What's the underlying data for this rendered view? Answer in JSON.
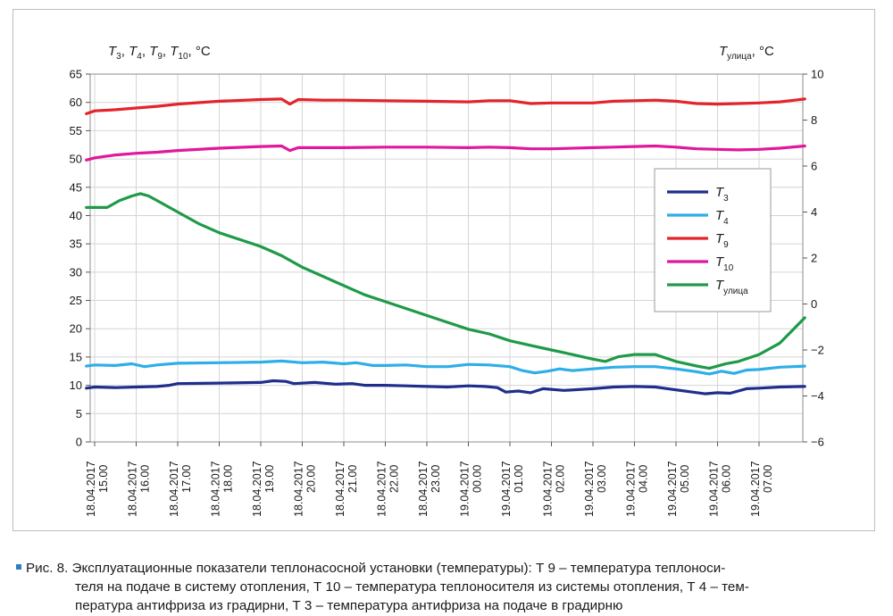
{
  "chart_data": {
    "type": "line",
    "left_axis_label": {
      "t3": "3",
      "t4": "4",
      "t9": "9",
      "t10": "10",
      "unit": ", °C"
    },
    "right_axis_label": {
      "sub": "улица",
      "unit": ", °C"
    },
    "y_left": {
      "ylim": [
        0,
        65
      ],
      "ticks": [
        "0",
        "5",
        "10",
        "15",
        "20",
        "25",
        "30",
        "35",
        "40",
        "45",
        "50",
        "55",
        "60",
        "65"
      ]
    },
    "y_right": {
      "ylim": [
        -6,
        10
      ],
      "ticks": [
        "−6",
        "−4",
        "−2",
        "0",
        "2",
        "4",
        "6",
        "8",
        "10"
      ]
    },
    "x_ticks": [
      [
        "18.04.2017",
        "15.00"
      ],
      [
        "18.04.2017",
        "16.00"
      ],
      [
        "18.04.2017",
        "17.00"
      ],
      [
        "18.04.2017",
        "18.00"
      ],
      [
        "18.04.2017",
        "19.00"
      ],
      [
        "18.04.2017",
        "20.00"
      ],
      [
        "18.04.2017",
        "21.00"
      ],
      [
        "18.04.2017",
        "22.00"
      ],
      [
        "18.04.2017",
        "23.00"
      ],
      [
        "19.04.2017",
        "00.00"
      ],
      [
        "19.04.2017",
        "01.00"
      ],
      [
        "19.04.2017",
        "02.00"
      ],
      [
        "19.04.2017",
        "03.00"
      ],
      [
        "19.04.2017",
        "04.00"
      ],
      [
        "19.04.2017",
        "05.00"
      ],
      [
        "19.04.2017",
        "06.00"
      ],
      [
        "19.04.2017",
        "07.00"
      ]
    ],
    "grid": true,
    "legend_position": "right",
    "series": [
      {
        "key": "T3",
        "legend_sub": "3",
        "color": "#1f2e8c",
        "axis": "left",
        "points": [
          [
            -0.2,
            9.5
          ],
          [
            0,
            9.7
          ],
          [
            0.5,
            9.6
          ],
          [
            1,
            9.7
          ],
          [
            1.5,
            9.8
          ],
          [
            1.8,
            10.0
          ],
          [
            2,
            10.3
          ],
          [
            3,
            10.4
          ],
          [
            4,
            10.5
          ],
          [
            4.3,
            10.8
          ],
          [
            4.6,
            10.7
          ],
          [
            4.8,
            10.3
          ],
          [
            5.3,
            10.5
          ],
          [
            5.8,
            10.2
          ],
          [
            6.2,
            10.3
          ],
          [
            6.5,
            10.0
          ],
          [
            7,
            10.0
          ],
          [
            7.5,
            9.9
          ],
          [
            8,
            9.8
          ],
          [
            8.5,
            9.7
          ],
          [
            9,
            9.9
          ],
          [
            9.4,
            9.8
          ],
          [
            9.7,
            9.6
          ],
          [
            9.9,
            8.8
          ],
          [
            10.2,
            9.0
          ],
          [
            10.5,
            8.7
          ],
          [
            10.8,
            9.4
          ],
          [
            11.3,
            9.1
          ],
          [
            12,
            9.4
          ],
          [
            12.5,
            9.7
          ],
          [
            13,
            9.8
          ],
          [
            13.5,
            9.7
          ],
          [
            14,
            9.2
          ],
          [
            14.4,
            8.8
          ],
          [
            14.7,
            8.5
          ],
          [
            15,
            8.7
          ],
          [
            15.3,
            8.6
          ],
          [
            15.7,
            9.4
          ],
          [
            16,
            9.5
          ],
          [
            16.5,
            9.7
          ],
          [
            17.1,
            9.8
          ]
        ]
      },
      {
        "key": "T4",
        "legend_sub": "4",
        "color": "#2eaee8",
        "axis": "left",
        "points": [
          [
            -0.2,
            13.4
          ],
          [
            0,
            13.6
          ],
          [
            0.5,
            13.5
          ],
          [
            0.9,
            13.8
          ],
          [
            1.2,
            13.3
          ],
          [
            1.5,
            13.6
          ],
          [
            2,
            13.9
          ],
          [
            3,
            14.0
          ],
          [
            4,
            14.1
          ],
          [
            4.5,
            14.3
          ],
          [
            5,
            14.0
          ],
          [
            5.5,
            14.1
          ],
          [
            6,
            13.8
          ],
          [
            6.3,
            14.0
          ],
          [
            6.7,
            13.5
          ],
          [
            7,
            13.5
          ],
          [
            7.5,
            13.6
          ],
          [
            8,
            13.3
          ],
          [
            8.5,
            13.3
          ],
          [
            9,
            13.7
          ],
          [
            9.5,
            13.6
          ],
          [
            10,
            13.3
          ],
          [
            10.3,
            12.6
          ],
          [
            10.6,
            12.2
          ],
          [
            10.9,
            12.5
          ],
          [
            11.2,
            12.9
          ],
          [
            11.5,
            12.6
          ],
          [
            12,
            12.9
          ],
          [
            12.5,
            13.2
          ],
          [
            13,
            13.3
          ],
          [
            13.5,
            13.3
          ],
          [
            14,
            12.9
          ],
          [
            14.5,
            12.4
          ],
          [
            14.8,
            12.0
          ],
          [
            15.1,
            12.5
          ],
          [
            15.4,
            12.1
          ],
          [
            15.7,
            12.7
          ],
          [
            16,
            12.8
          ],
          [
            16.5,
            13.2
          ],
          [
            17.1,
            13.4
          ]
        ]
      },
      {
        "key": "T9",
        "legend_sub": "9",
        "color": "#e3242b",
        "axis": "left",
        "points": [
          [
            -0.2,
            58.0
          ],
          [
            0,
            58.5
          ],
          [
            0.5,
            58.7
          ],
          [
            1,
            59.0
          ],
          [
            1.5,
            59.3
          ],
          [
            2,
            59.7
          ],
          [
            3,
            60.2
          ],
          [
            4,
            60.5
          ],
          [
            4.5,
            60.6
          ],
          [
            4.7,
            59.7
          ],
          [
            4.9,
            60.5
          ],
          [
            5.5,
            60.4
          ],
          [
            6,
            60.4
          ],
          [
            7,
            60.3
          ],
          [
            8,
            60.2
          ],
          [
            9,
            60.1
          ],
          [
            9.5,
            60.3
          ],
          [
            10,
            60.3
          ],
          [
            10.5,
            59.8
          ],
          [
            11,
            59.9
          ],
          [
            12,
            59.9
          ],
          [
            12.5,
            60.2
          ],
          [
            13,
            60.3
          ],
          [
            13.5,
            60.4
          ],
          [
            14,
            60.2
          ],
          [
            14.5,
            59.8
          ],
          [
            15,
            59.7
          ],
          [
            15.5,
            59.8
          ],
          [
            16,
            59.9
          ],
          [
            16.5,
            60.1
          ],
          [
            17.1,
            60.6
          ]
        ]
      },
      {
        "key": "T10",
        "legend_sub": "10",
        "color": "#e0189b",
        "axis": "left",
        "points": [
          [
            -0.2,
            49.8
          ],
          [
            0,
            50.2
          ],
          [
            0.5,
            50.7
          ],
          [
            1,
            51.0
          ],
          [
            1.5,
            51.2
          ],
          [
            2,
            51.5
          ],
          [
            3,
            51.9
          ],
          [
            4,
            52.2
          ],
          [
            4.5,
            52.3
          ],
          [
            4.7,
            51.5
          ],
          [
            4.9,
            52.0
          ],
          [
            5.5,
            52.0
          ],
          [
            6,
            52.0
          ],
          [
            7,
            52.1
          ],
          [
            8,
            52.1
          ],
          [
            9,
            52.0
          ],
          [
            9.5,
            52.1
          ],
          [
            10,
            52.0
          ],
          [
            10.5,
            51.8
          ],
          [
            11,
            51.8
          ],
          [
            12,
            52.0
          ],
          [
            12.5,
            52.1
          ],
          [
            13,
            52.2
          ],
          [
            13.5,
            52.3
          ],
          [
            14,
            52.1
          ],
          [
            14.5,
            51.8
          ],
          [
            15,
            51.7
          ],
          [
            15.5,
            51.6
          ],
          [
            16,
            51.7
          ],
          [
            16.5,
            51.9
          ],
          [
            17.1,
            52.3
          ]
        ]
      },
      {
        "key": "Tulitsa",
        "legend_sub": "улица",
        "color": "#1e9a48",
        "axis": "right",
        "points": [
          [
            -0.2,
            4.2
          ],
          [
            0,
            4.2
          ],
          [
            0.3,
            4.2
          ],
          [
            0.6,
            4.5
          ],
          [
            0.9,
            4.7
          ],
          [
            1.1,
            4.8
          ],
          [
            1.3,
            4.7
          ],
          [
            1.5,
            4.5
          ],
          [
            2,
            4.0
          ],
          [
            2.5,
            3.5
          ],
          [
            3,
            3.1
          ],
          [
            3.5,
            2.8
          ],
          [
            4,
            2.5
          ],
          [
            4.5,
            2.1
          ],
          [
            5,
            1.6
          ],
          [
            5.5,
            1.2
          ],
          [
            6,
            0.8
          ],
          [
            6.5,
            0.4
          ],
          [
            7,
            0.1
          ],
          [
            7.5,
            -0.2
          ],
          [
            8,
            -0.5
          ],
          [
            8.5,
            -0.8
          ],
          [
            9,
            -1.1
          ],
          [
            9.5,
            -1.3
          ],
          [
            10,
            -1.6
          ],
          [
            10.5,
            -1.8
          ],
          [
            11,
            -2.0
          ],
          [
            11.5,
            -2.2
          ],
          [
            12,
            -2.4
          ],
          [
            12.3,
            -2.5
          ],
          [
            12.6,
            -2.3
          ],
          [
            13,
            -2.2
          ],
          [
            13.5,
            -2.2
          ],
          [
            14,
            -2.5
          ],
          [
            14.5,
            -2.7
          ],
          [
            14.8,
            -2.8
          ],
          [
            15.2,
            -2.6
          ],
          [
            15.5,
            -2.5
          ],
          [
            16,
            -2.2
          ],
          [
            16.5,
            -1.7
          ],
          [
            17.1,
            -0.6
          ]
        ]
      }
    ],
    "legend_entries": [
      "3",
      "4",
      "9",
      "10",
      "улица"
    ]
  },
  "caption": {
    "prefix": "Рис. 8. Эксплуатационные показатели теплонасосной установки (температуры): Т 9 – температура теплоноси-",
    "line2": "теля на подаче в систему отопления, Т 10 – температура теплоносителя из системы отопления, Т 4 – тем-",
    "line3": "пература антифриза из градирни, Т 3 – температура антифриза на подаче в градирню",
    "bullet_color": "#2a7fc7"
  }
}
